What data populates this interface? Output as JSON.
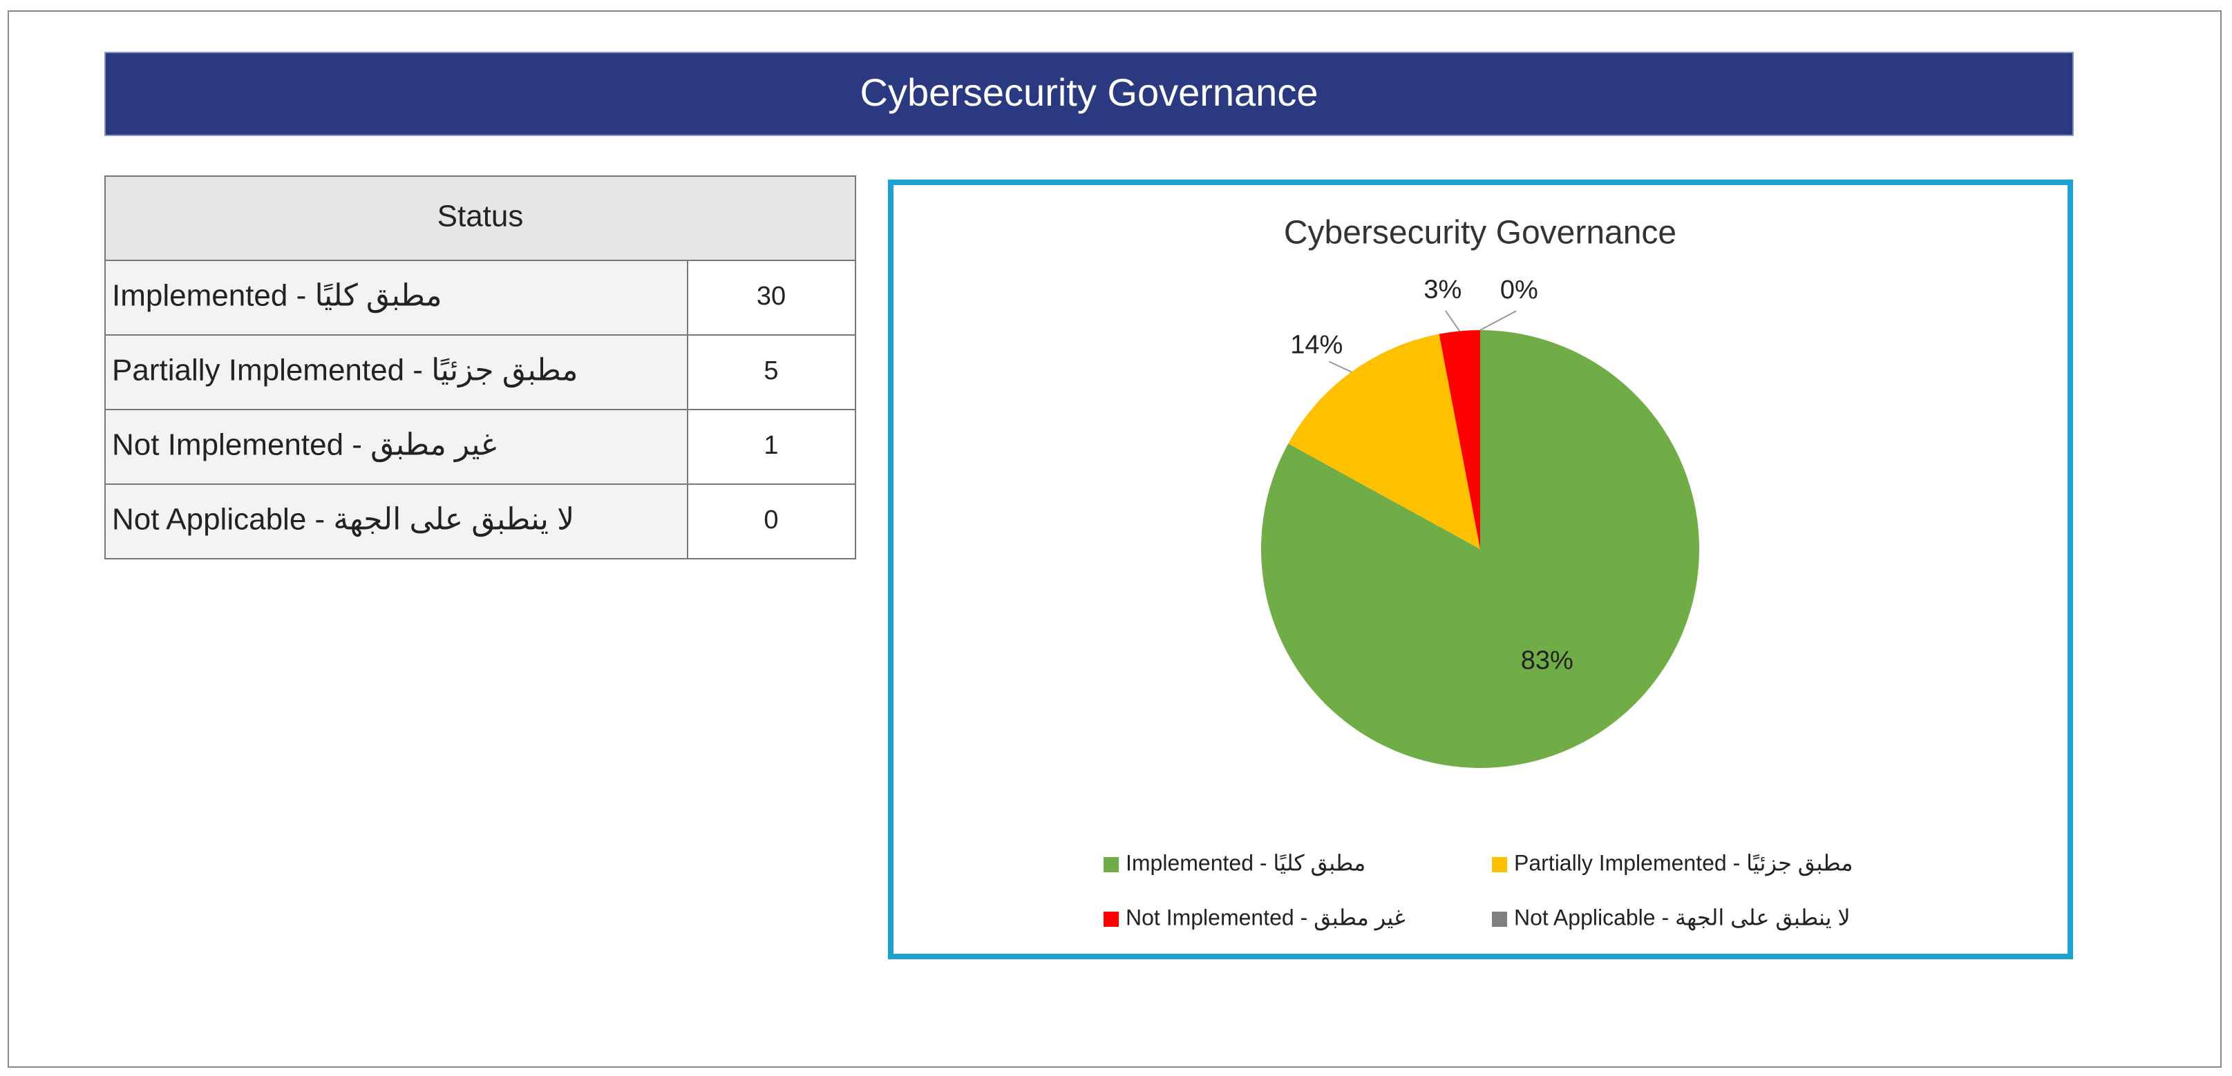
{
  "header": {
    "title": "Cybersecurity Governance"
  },
  "table": {
    "header": "Status",
    "rows": [
      [
        "Implemented -  مطبق كليًا",
        30
      ],
      [
        "Partially Implemented -  مطبق جزئيًا",
        5
      ],
      [
        "Not Implemented -  غير مطبق",
        1
      ],
      [
        "Not Applicable -  لا ينطبق على الجهة",
        0
      ]
    ]
  },
  "chart_data": {
    "type": "pie",
    "title": "Cybersecurity Governance",
    "categories": [
      "Implemented -  مطبق كليًا",
      "Partially Implemented -  مطبق جزئيًا",
      "Not Implemented -  غير مطبق",
      "Not Applicable -  لا ينطبق على الجهة"
    ],
    "values": [
      83,
      14,
      3,
      0
    ],
    "value_labels": [
      "83%",
      "14%",
      "3%",
      "0%"
    ],
    "colors": [
      "#70ad47",
      "#ffc000",
      "#ff0000",
      "#7f7f7f"
    ],
    "legend": "bottom"
  }
}
